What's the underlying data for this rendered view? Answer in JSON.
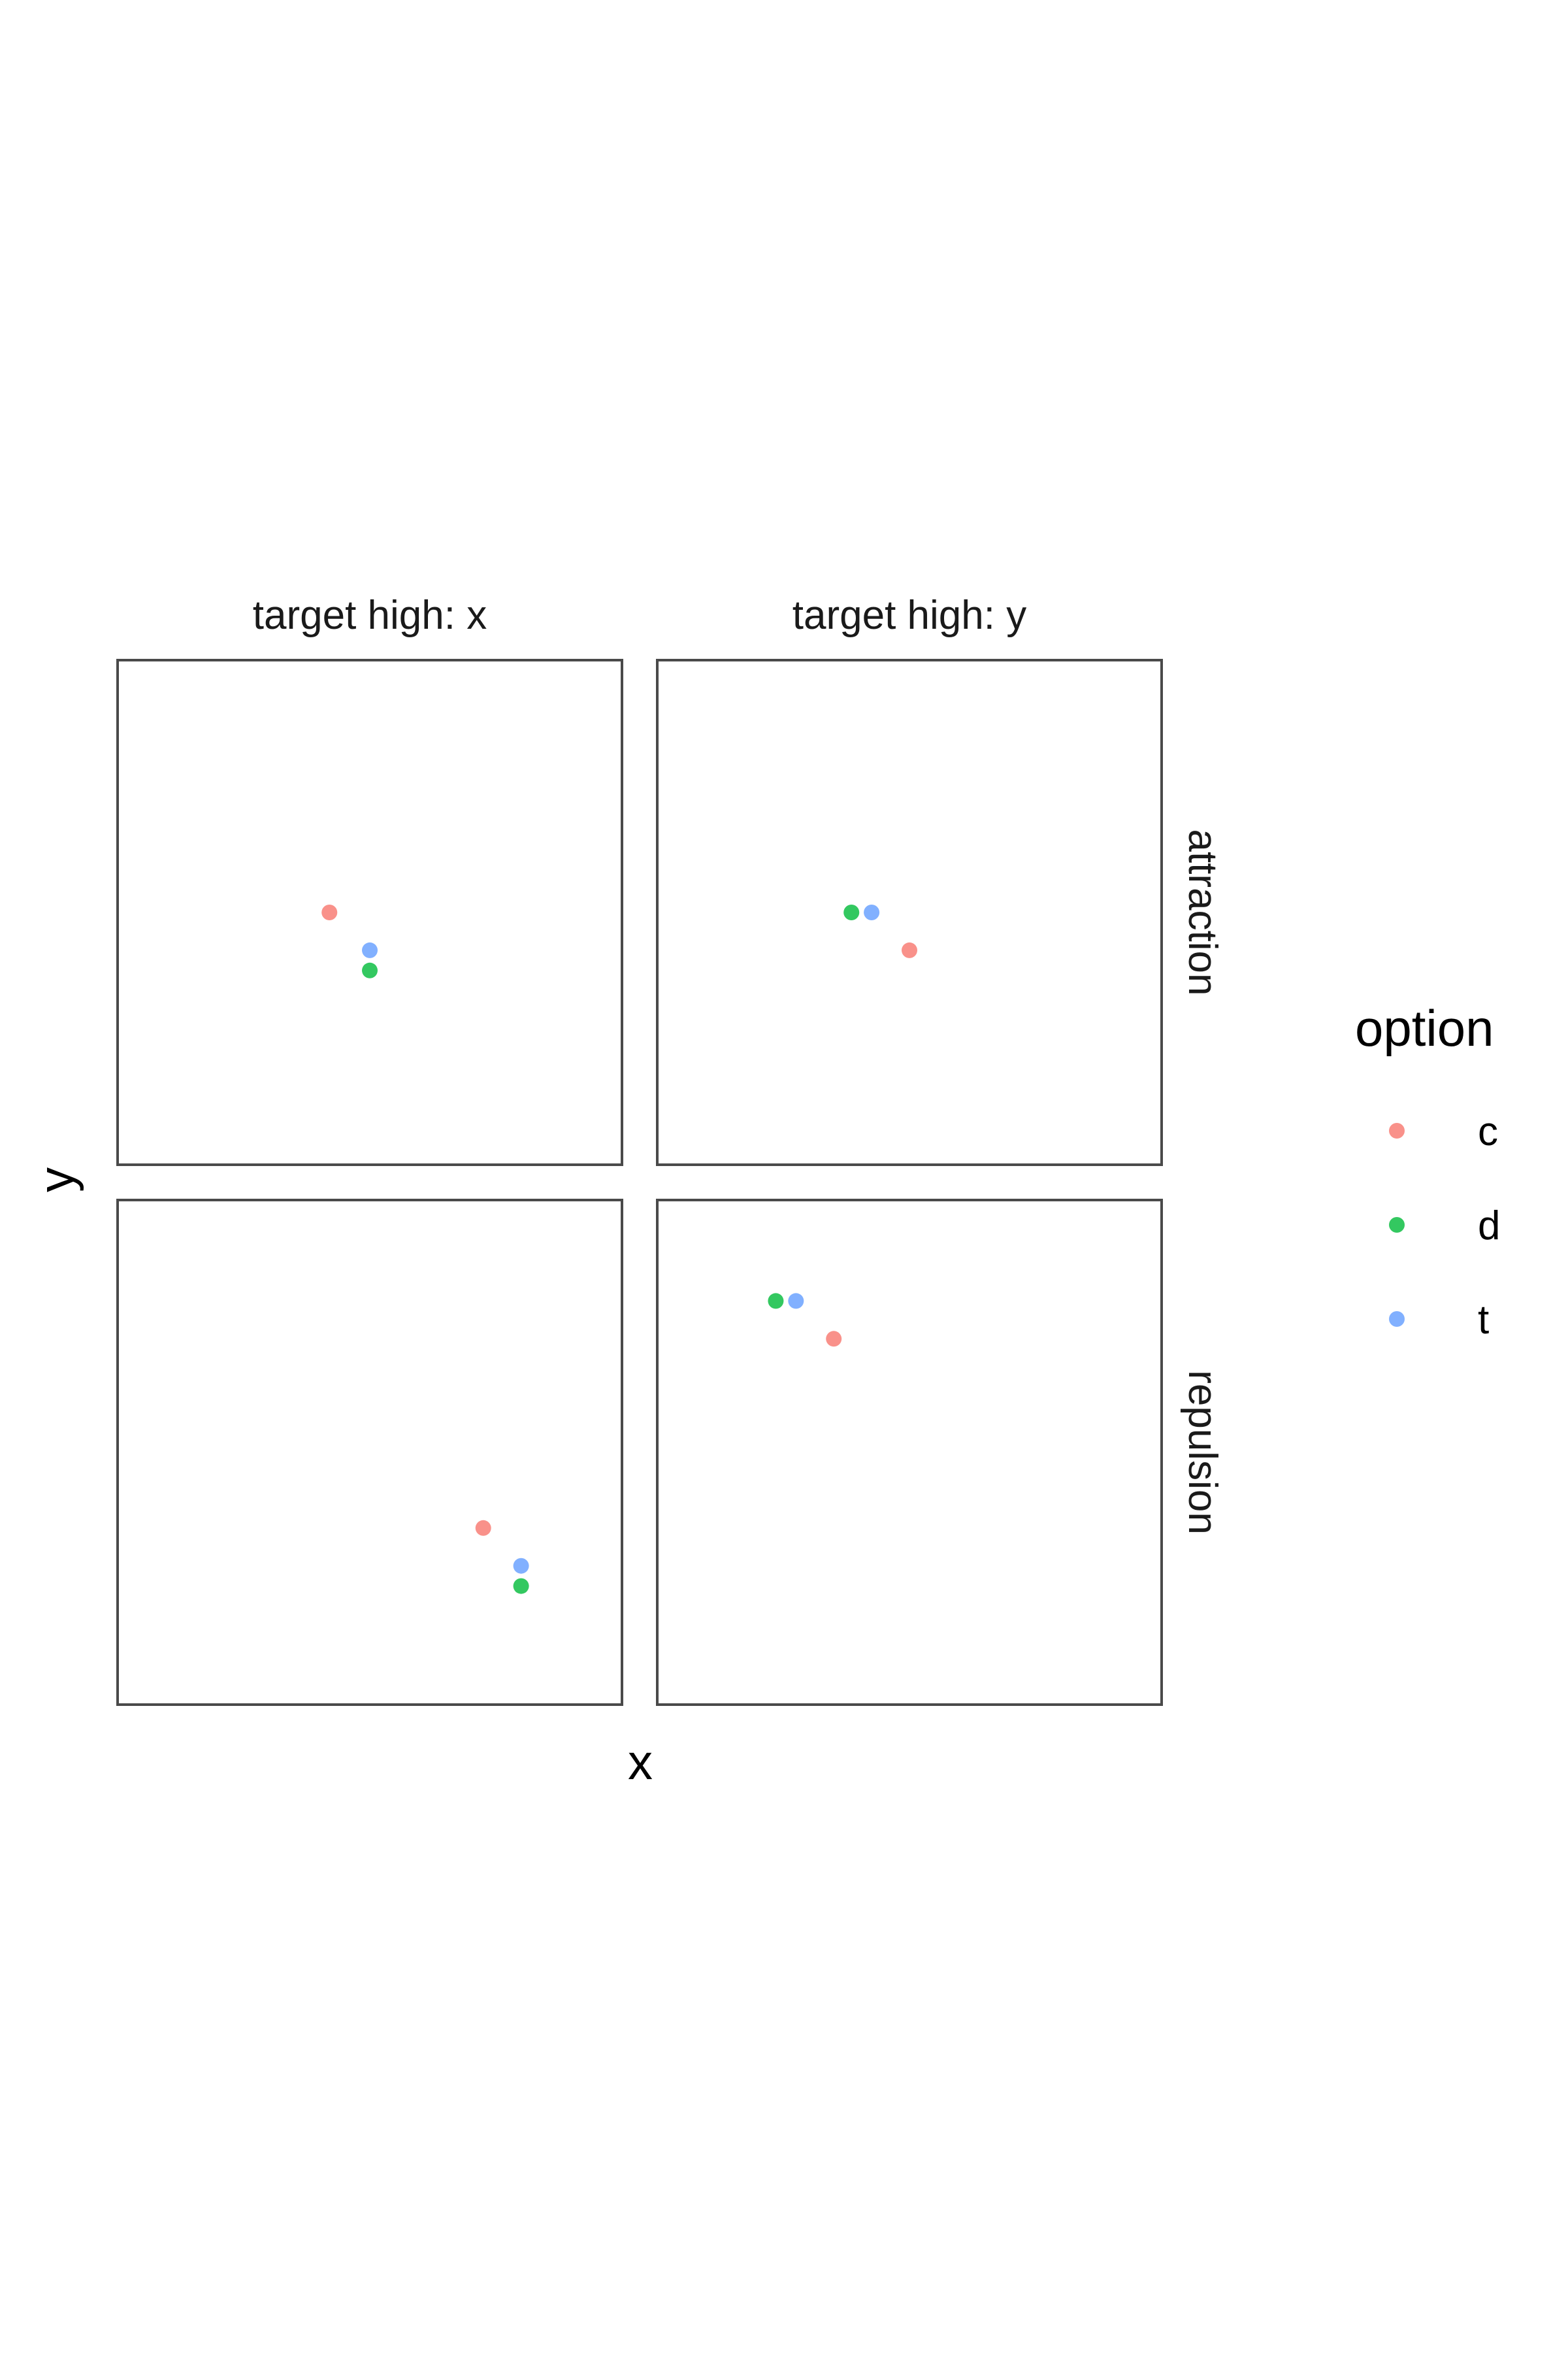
{
  "chart_data": {
    "type": "scatter",
    "xlabel": "x",
    "ylabel": "y",
    "col_facets": [
      "target high: x",
      "target high: y"
    ],
    "row_facets": [
      "attraction",
      "repulsion"
    ],
    "legend": {
      "title": "option",
      "placement": "right",
      "entries": [
        {
          "label": "c",
          "color": "#F8766D"
        },
        {
          "label": "d",
          "color": "#00BA38"
        },
        {
          "label": "t",
          "color": "#619CFF"
        }
      ]
    },
    "xlim": [
      0,
      1
    ],
    "ylim": [
      0,
      1
    ],
    "grid": false,
    "panels": [
      {
        "row": "attraction",
        "col": "target high: x",
        "points": [
          {
            "option": "c",
            "x": 0.42,
            "y": 0.5
          },
          {
            "option": "t",
            "x": 0.5,
            "y": 0.425
          },
          {
            "option": "d",
            "x": 0.5,
            "y": 0.385
          }
        ]
      },
      {
        "row": "attraction",
        "col": "target high: y",
        "points": [
          {
            "option": "d",
            "x": 0.385,
            "y": 0.5
          },
          {
            "option": "t",
            "x": 0.425,
            "y": 0.5
          },
          {
            "option": "c",
            "x": 0.5,
            "y": 0.425
          }
        ]
      },
      {
        "row": "repulsion",
        "col": "target high: x",
        "points": [
          {
            "option": "c",
            "x": 0.725,
            "y": 0.35
          },
          {
            "option": "t",
            "x": 0.8,
            "y": 0.275
          },
          {
            "option": "d",
            "x": 0.8,
            "y": 0.235
          }
        ]
      },
      {
        "row": "repulsion",
        "col": "target high: y",
        "points": [
          {
            "option": "d",
            "x": 0.235,
            "y": 0.8
          },
          {
            "option": "t",
            "x": 0.275,
            "y": 0.8
          },
          {
            "option": "c",
            "x": 0.35,
            "y": 0.725
          }
        ]
      }
    ]
  }
}
